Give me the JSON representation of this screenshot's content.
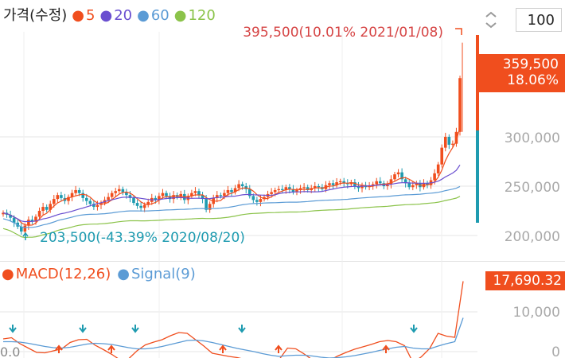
{
  "legend": {
    "title": "가격(수정)",
    "items": [
      {
        "label": "5",
        "color": "#f04e1e"
      },
      {
        "label": "20",
        "color": "#6a4fd0"
      },
      {
        "label": "60",
        "color": "#5b9bd5"
      },
      {
        "label": "120",
        "color": "#8bc34a"
      }
    ]
  },
  "zoom": {
    "value": "100"
  },
  "price_axis": {
    "ticks": [
      "300,000",
      "250,000",
      "200,000"
    ]
  },
  "price_badge": {
    "price": "359,500",
    "change": "18.06%"
  },
  "annotations": {
    "high": "395,500(10.01% 2021/01/08)",
    "low": "203,500(-43.39% 2020/08/20)"
  },
  "macd_legend": {
    "items": [
      {
        "label": "MACD(12,26)",
        "color": "#f04e1e"
      },
      {
        "label": "Signal(9)",
        "color": "#5b9bd5"
      }
    ]
  },
  "macd_badge": {
    "value": "17,690.32"
  },
  "macd_axis": {
    "ticks": [
      "10,000",
      "0"
    ],
    "left_tick": "0.0"
  },
  "colors": {
    "up": "#f04e1e",
    "down": "#1e9bb0",
    "grid": "#e6e6e6"
  },
  "chart_data": [
    {
      "type": "candlestick",
      "title": "가격(수정)",
      "ylim": [
        190000,
        410000
      ],
      "y_ticks": [
        200000,
        250000,
        300000
      ],
      "grid": true,
      "legend": "top-left",
      "series_names": [
        "5",
        "20",
        "60",
        "120"
      ],
      "high": {
        "value": 395500,
        "change_pct": 10.01,
        "date": "2021/01/08"
      },
      "low": {
        "value": 203500,
        "change_pct": -43.39,
        "date": "2020/08/20"
      },
      "last": {
        "value": 359500,
        "change_pct": 18.06
      },
      "closes": [
        223000,
        221000,
        218000,
        213000,
        209000,
        204000,
        210000,
        216000,
        214000,
        219000,
        225000,
        229000,
        226000,
        232000,
        237000,
        241000,
        238000,
        235000,
        239000,
        243000,
        246000,
        243000,
        238000,
        235000,
        232000,
        229000,
        231000,
        233000,
        236000,
        239000,
        243000,
        245000,
        247000,
        244000,
        241000,
        238000,
        233000,
        230000,
        228000,
        231000,
        234000,
        238000,
        236000,
        240000,
        243000,
        240000,
        237000,
        241000,
        239000,
        242000,
        236000,
        240000,
        243000,
        245000,
        241000,
        237000,
        226000,
        232000,
        238000,
        241000,
        240000,
        243000,
        246000,
        244000,
        248000,
        252000,
        250000,
        247000,
        240000,
        236000,
        234000,
        237000,
        239000,
        242000,
        244000,
        246000,
        247000,
        246000,
        249000,
        247000,
        244000,
        246000,
        248000,
        249000,
        246000,
        248000,
        250000,
        249000,
        247000,
        251000,
        253000,
        251000,
        254000,
        255000,
        253000,
        252000,
        254000,
        250000,
        248000,
        251000,
        249000,
        250000,
        252000,
        255000,
        253000,
        250000,
        252000,
        257000,
        262000,
        264000,
        257000,
        253000,
        249000,
        251000,
        253000,
        249000,
        253000,
        251000,
        256000,
        263000,
        272000,
        289000,
        300000,
        292000,
        293000,
        305000,
        359500
      ]
    },
    {
      "type": "line",
      "title": "MACD(12,26)",
      "series": [
        {
          "name": "MACD(12,26)",
          "values": [
            3200,
            3500,
            2000,
            900,
            -200,
            -300,
            200,
            700,
            2300,
            3000,
            3100,
            1600,
            500,
            -700,
            -2100,
            -1800,
            200,
            1700,
            2400,
            3000,
            4000,
            4800,
            4600,
            3000,
            1400,
            -400,
            -800,
            -1200,
            -1500,
            -2000,
            -2600,
            -2800,
            -3200,
            -2000,
            900,
            700,
            -600,
            -2100,
            -2900,
            -2200,
            -1100,
            -200,
            600,
            1200,
            1800,
            2500,
            2800,
            2500,
            1500,
            -2700,
            -1300,
            800,
            4600,
            3900,
            3600,
            17690
          ]
        },
        {
          "name": "Signal(9)",
          "values": [
            2500,
            2500,
            2400,
            2100,
            1700,
            1300,
            1000,
            900,
            1100,
            1500,
            1900,
            2100,
            2000,
            1800,
            1400,
            1000,
            700,
            700,
            900,
            1300,
            1800,
            2300,
            2800,
            2900,
            2700,
            2300,
            1800,
            1300,
            800,
            400,
            0,
            -500,
            -900,
            -1200,
            -1000,
            -900,
            -900,
            -1100,
            -1400,
            -1600,
            -1500,
            -1300,
            -1000,
            -600,
            -200,
            300,
            700,
            1100,
            1300,
            900,
            700,
            700,
            1400,
            2000,
            2500,
            8500
          ]
        }
      ],
      "y_ticks": [
        0,
        10000
      ],
      "last": 17690.32,
      "legend": "top-left"
    }
  ]
}
